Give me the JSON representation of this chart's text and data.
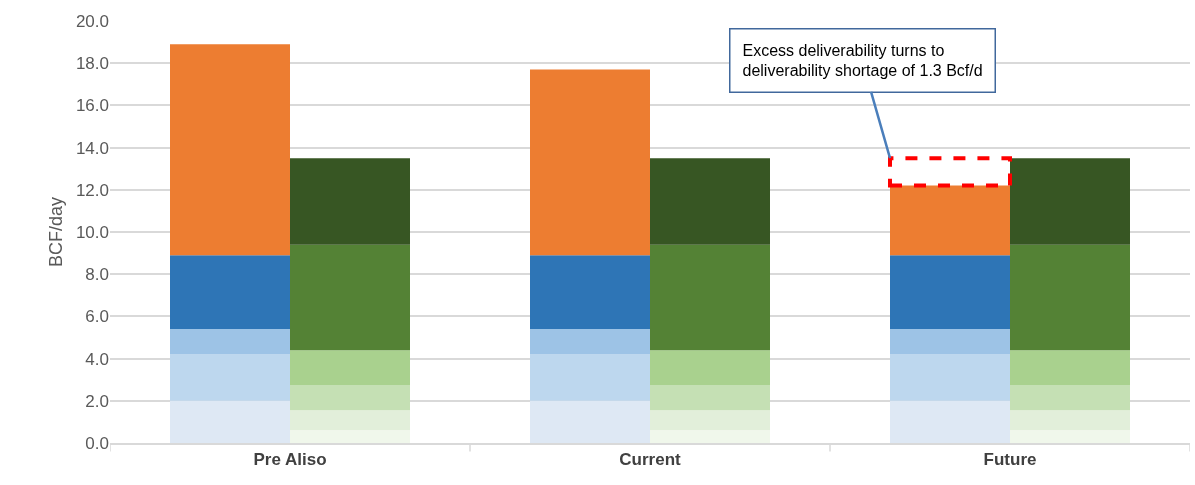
{
  "chart_data": {
    "type": "bar",
    "stacked": true,
    "ylabel": "BCF/day",
    "categories": [
      null,
      null,
      "Pre Aliso",
      null,
      null,
      null,
      null,
      null,
      "Current",
      null,
      null,
      null,
      null,
      null,
      "Future",
      null,
      null,
      null
    ],
    "series": [
      {
        "color": "#dee8f4",
        "values": [
          null,
          2.0,
          null,
          null,
          null,
          null,
          null,
          2.0,
          null,
          null,
          null,
          null,
          null,
          2.0,
          null,
          null,
          null,
          null
        ]
      },
      {
        "color": "#bdd7ee",
        "values": [
          null,
          2.2,
          null,
          null,
          null,
          null,
          null,
          2.2,
          null,
          null,
          null,
          null,
          null,
          2.2,
          null,
          null,
          null,
          null
        ]
      },
      {
        "color": "#9dc3e6",
        "values": [
          null,
          1.2,
          null,
          null,
          null,
          null,
          null,
          1.2,
          null,
          null,
          null,
          null,
          null,
          1.2,
          null,
          null,
          null,
          null
        ]
      },
      {
        "color": "#2e75b6",
        "values": [
          null,
          3.5,
          null,
          null,
          null,
          null,
          null,
          3.5,
          null,
          null,
          null,
          null,
          null,
          3.5,
          null,
          null,
          null,
          null
        ]
      },
      {
        "color": "#ed7d31",
        "values": [
          null,
          10.0,
          null,
          null,
          null,
          null,
          null,
          8.8,
          null,
          null,
          null,
          null,
          null,
          3.3,
          null,
          null,
          null,
          null
        ]
      },
      {
        "color": "#f0f7eb",
        "values": [
          null,
          null,
          null,
          0.6,
          null,
          null,
          null,
          null,
          null,
          0.6,
          null,
          null,
          null,
          null,
          null,
          0.6,
          null,
          null
        ]
      },
      {
        "color": "#e2efda",
        "values": [
          null,
          null,
          null,
          0.95,
          null,
          null,
          null,
          null,
          null,
          0.95,
          null,
          null,
          null,
          null,
          null,
          0.95,
          null,
          null
        ]
      },
      {
        "color": "#c5e0b4",
        "values": [
          null,
          null,
          null,
          1.2,
          null,
          null,
          null,
          null,
          null,
          1.2,
          null,
          null,
          null,
          null,
          null,
          1.2,
          null,
          null
        ]
      },
      {
        "color": "#a9d18e",
        "values": [
          null,
          null,
          null,
          1.65,
          null,
          null,
          null,
          null,
          null,
          1.65,
          null,
          null,
          null,
          null,
          null,
          1.65,
          null,
          null
        ]
      },
      {
        "color": "#548235",
        "values": [
          null,
          null,
          null,
          5.0,
          null,
          null,
          null,
          null,
          null,
          5.0,
          null,
          null,
          null,
          null,
          null,
          5.0,
          null,
          null
        ]
      },
      {
        "color": "#375623",
        "values": [
          null,
          null,
          null,
          4.1,
          null,
          null,
          null,
          null,
          null,
          4.1,
          null,
          null,
          null,
          null,
          null,
          4.1,
          null,
          null
        ]
      }
    ],
    "ylim": [
      0,
      20
    ],
    "yticks": [
      {
        "value": 0,
        "label": "0.0"
      },
      {
        "value": 2,
        "label": "2.0"
      },
      {
        "value": 4,
        "label": "4.0"
      },
      {
        "value": 6,
        "label": "6.0"
      },
      {
        "value": 8,
        "label": "8.0"
      },
      {
        "value": 10,
        "label": "10.0"
      },
      {
        "value": 12,
        "label": "12.0"
      },
      {
        "value": 14,
        "label": "14.0"
      },
      {
        "value": 16,
        "label": "16.0"
      },
      {
        "value": 18,
        "label": "18.0"
      },
      {
        "value": 20,
        "label": "20.0"
      }
    ],
    "grid": "y",
    "annotations": [
      "Excess deliverability turns to\ndeliverability shortage of 1.3 Bcf/d"
    ]
  }
}
